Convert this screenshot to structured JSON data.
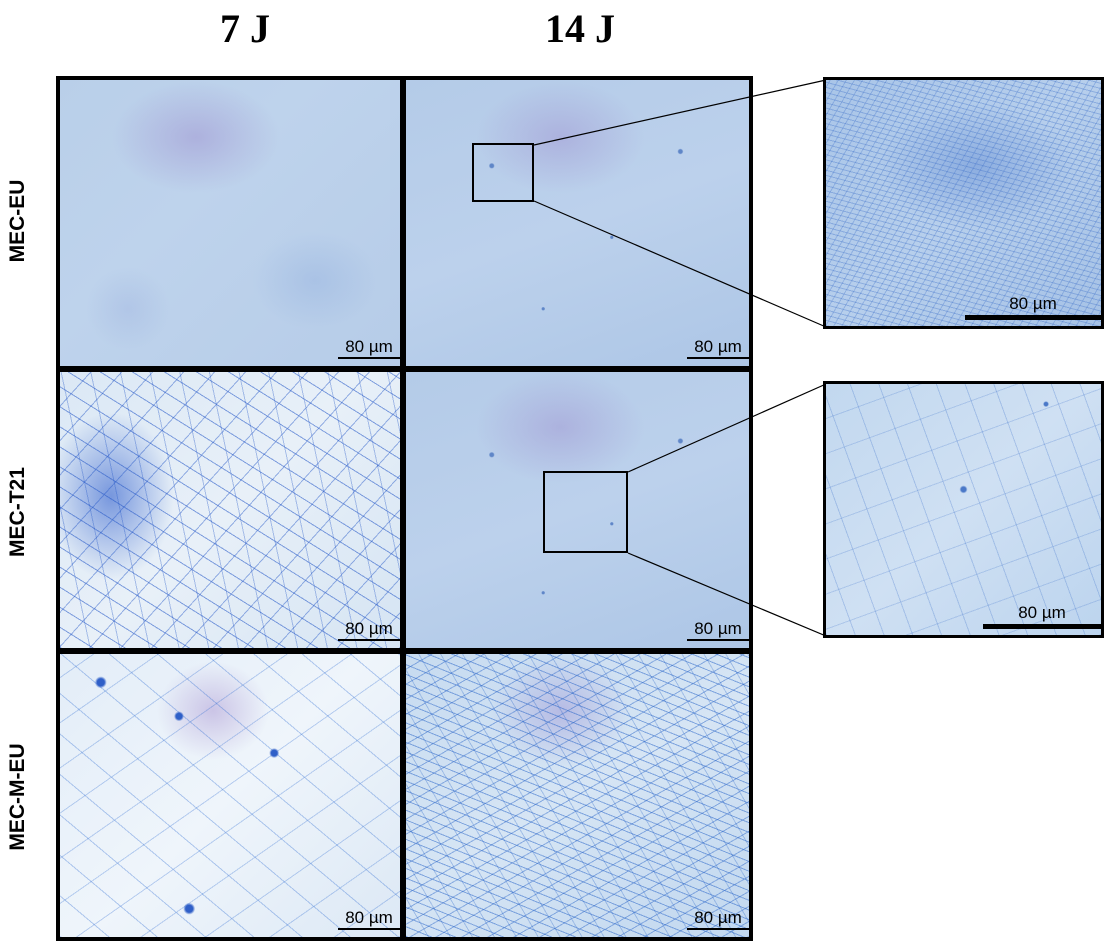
{
  "columns": [
    {
      "label": "7 J"
    },
    {
      "label": "14 J"
    }
  ],
  "rows": [
    {
      "label": "MEC-EU"
    },
    {
      "label": "MEC-T21"
    },
    {
      "label": "MEC-M-EU"
    }
  ],
  "scale_bar": "80 µm",
  "colors": {
    "background": "#ffffff",
    "frame": "#000000",
    "stain": "#3a6fd0"
  }
}
